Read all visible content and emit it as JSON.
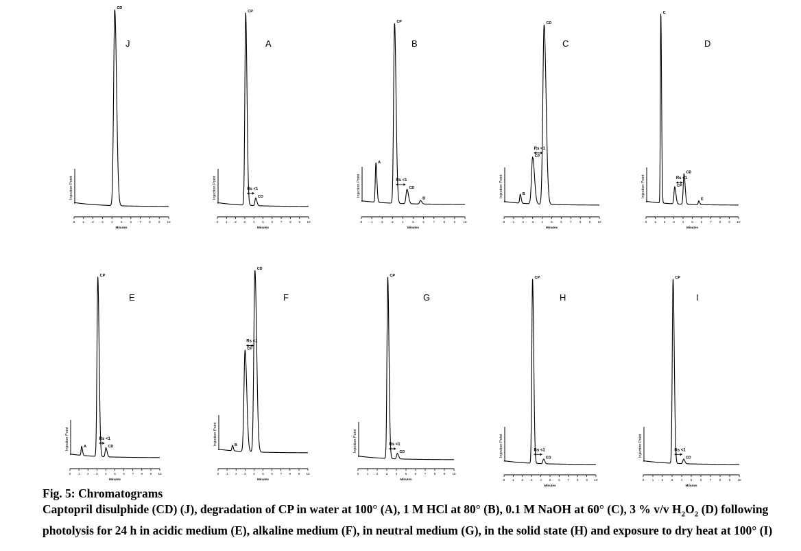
{
  "figure": {
    "title": "Fig. 5: Chromatograms",
    "caption_part1": "Captopril disulphide (CD) (J), degradation of CP in water at 100° (A), 1 M HCl at 80° (B), 0.1 M NaOH at 60° (C), 3 % v/v H",
    "caption_sub1": "2",
    "caption_part2": "O",
    "caption_sub2": "2",
    "caption_part3": " (D) following photolysis for 24 h in acidic medium (E), alkaline medium (F), in neutral medium (G), in the solid state (H) and exposure to dry heat at 100° (I)"
  },
  "chart_data": [
    {
      "type": "line",
      "panel": "J",
      "injection_label": "Injection Point",
      "xlabel": "Minutes",
      "xlim": [
        0,
        10
      ],
      "ticks": [
        "0",
        "1",
        "2",
        "3",
        "4",
        "5",
        "6",
        "7",
        "8",
        "9",
        "10"
      ],
      "peaks": [
        {
          "label": "CD",
          "rt": 4.3,
          "height": 1.0,
          "width": 0.12
        }
      ],
      "rs_label": ""
    },
    {
      "type": "line",
      "panel": "A",
      "injection_label": "Injection Point",
      "xlabel": "Minutes",
      "xlim": [
        0,
        10
      ],
      "ticks": [
        "0",
        "1",
        "2",
        "3",
        "4",
        "5",
        "6",
        "7",
        "8",
        "9",
        "10"
      ],
      "peaks": [
        {
          "label": "CP",
          "rt": 3.1,
          "height": 1.0,
          "width": 0.09
        },
        {
          "label": "CD",
          "rt": 4.2,
          "height": 0.04,
          "width": 0.08
        }
      ],
      "rs_label": "Rs <1"
    },
    {
      "type": "line",
      "panel": "B",
      "injection_label": "Injection Point",
      "xlabel": "Minutes",
      "xlim": [
        0,
        10
      ],
      "ticks": [
        "0",
        "1",
        "2",
        "3",
        "4",
        "5",
        "6",
        "7",
        "8",
        "9",
        "10"
      ],
      "peaks": [
        {
          "label": "A",
          "rt": 1.4,
          "height": 0.22,
          "width": 0.06
        },
        {
          "label": "CP",
          "rt": 3.2,
          "height": 1.0,
          "width": 0.09
        },
        {
          "label": "CD",
          "rt": 4.4,
          "height": 0.08,
          "width": 0.09
        },
        {
          "label": "B",
          "rt": 5.7,
          "height": 0.02,
          "width": 0.08
        }
      ],
      "rs_label": "Rs <1"
    },
    {
      "type": "line",
      "panel": "C",
      "injection_label": "Injection Point",
      "xlabel": "Minutes",
      "xlim": [
        0,
        10
      ],
      "ticks": [
        "0",
        "1",
        "2",
        "3",
        "4",
        "5",
        "6",
        "7",
        "8",
        "9",
        "10"
      ],
      "peaks": [
        {
          "label": "B",
          "rt": 1.7,
          "height": 0.05,
          "width": 0.06
        },
        {
          "label": "CP",
          "rt": 3.0,
          "height": 0.26,
          "width": 0.12
        },
        {
          "label": "CD",
          "rt": 4.2,
          "height": 1.0,
          "width": 0.13
        }
      ],
      "rs_label": "Rs <1"
    },
    {
      "type": "line",
      "panel": "D",
      "injection_label": "Injection Point",
      "xlabel": "Minutes",
      "xlim": [
        0,
        10
      ],
      "ticks": [
        "0",
        "1",
        "2",
        "3",
        "4",
        "5",
        "6",
        "7",
        "8",
        "9",
        "10"
      ],
      "peaks": [
        {
          "label": "C",
          "rt": 1.6,
          "height": 1.0,
          "width": 0.05
        },
        {
          "label": "CP",
          "rt": 3.1,
          "height": 0.09,
          "width": 0.08
        },
        {
          "label": "CD",
          "rt": 4.1,
          "height": 0.16,
          "width": 0.08
        },
        {
          "label": "E",
          "rt": 5.7,
          "height": 0.02,
          "width": 0.06
        }
      ],
      "rs_label": "Rs <1"
    },
    {
      "type": "line",
      "panel": "E",
      "injection_label": "Injection Point",
      "xlabel": "Minutes",
      "xlim": [
        0,
        10
      ],
      "ticks": [
        "0",
        "1",
        "2",
        "3",
        "4",
        "5",
        "6",
        "7",
        "8",
        "9",
        "10"
      ],
      "peaks": [
        {
          "label": "A",
          "rt": 1.3,
          "height": 0.05,
          "width": 0.06
        },
        {
          "label": "CP",
          "rt": 3.1,
          "height": 1.0,
          "width": 0.09
        },
        {
          "label": "CD",
          "rt": 4.0,
          "height": 0.05,
          "width": 0.08
        }
      ],
      "rs_label": "Rs <1"
    },
    {
      "type": "line",
      "panel": "F",
      "injection_label": "Injection Point",
      "xlabel": "Minutes",
      "xlim": [
        0,
        10
      ],
      "ticks": [
        "0",
        "1",
        "2",
        "3",
        "4",
        "5",
        "6",
        "7",
        "8",
        "9",
        "10"
      ],
      "peaks": [
        {
          "label": "B",
          "rt": 1.6,
          "height": 0.03,
          "width": 0.06
        },
        {
          "label": "CP",
          "rt": 3.0,
          "height": 0.56,
          "width": 0.12
        },
        {
          "label": "CD",
          "rt": 4.1,
          "height": 1.0,
          "width": 0.12
        }
      ],
      "rs_label": "Rs <1"
    },
    {
      "type": "line",
      "panel": "G",
      "injection_label": "Injection Point",
      "xlabel": "Minutes",
      "xlim": [
        0,
        10
      ],
      "ticks": [
        "0",
        "1",
        "2",
        "3",
        "4",
        "5",
        "6",
        "7",
        "8",
        "9",
        "10"
      ],
      "peaks": [
        {
          "label": "CP",
          "rt": 3.1,
          "height": 1.0,
          "width": 0.08
        },
        {
          "label": "CD",
          "rt": 4.1,
          "height": 0.03,
          "width": 0.08
        }
      ],
      "rs_label": "Rs <1"
    },
    {
      "type": "line",
      "panel": "H",
      "injection_label": "Injection Point",
      "xlabel": "Minutes",
      "xlim": [
        0,
        10
      ],
      "ticks": [
        "0",
        "1",
        "2",
        "3",
        "4",
        "5",
        "6",
        "7",
        "8",
        "9",
        "10"
      ],
      "peaks": [
        {
          "label": "CP",
          "rt": 3.1,
          "height": 1.0,
          "width": 0.08
        },
        {
          "label": "CD",
          "rt": 4.3,
          "height": 0.025,
          "width": 0.08
        }
      ],
      "rs_label": "Rs <1"
    },
    {
      "type": "line",
      "panel": "I",
      "injection_label": "Injection Point",
      "xlabel": "Minutes",
      "xlim": [
        0,
        10
      ],
      "ticks": [
        "0",
        "1",
        "2",
        "3",
        "4",
        "5",
        "6",
        "7",
        "8",
        "9",
        "10"
      ],
      "peaks": [
        {
          "label": "CP",
          "rt": 3.1,
          "height": 1.0,
          "width": 0.08
        },
        {
          "label": "CD",
          "rt": 4.2,
          "height": 0.025,
          "width": 0.08
        }
      ],
      "rs_label": "Rs <1"
    }
  ]
}
